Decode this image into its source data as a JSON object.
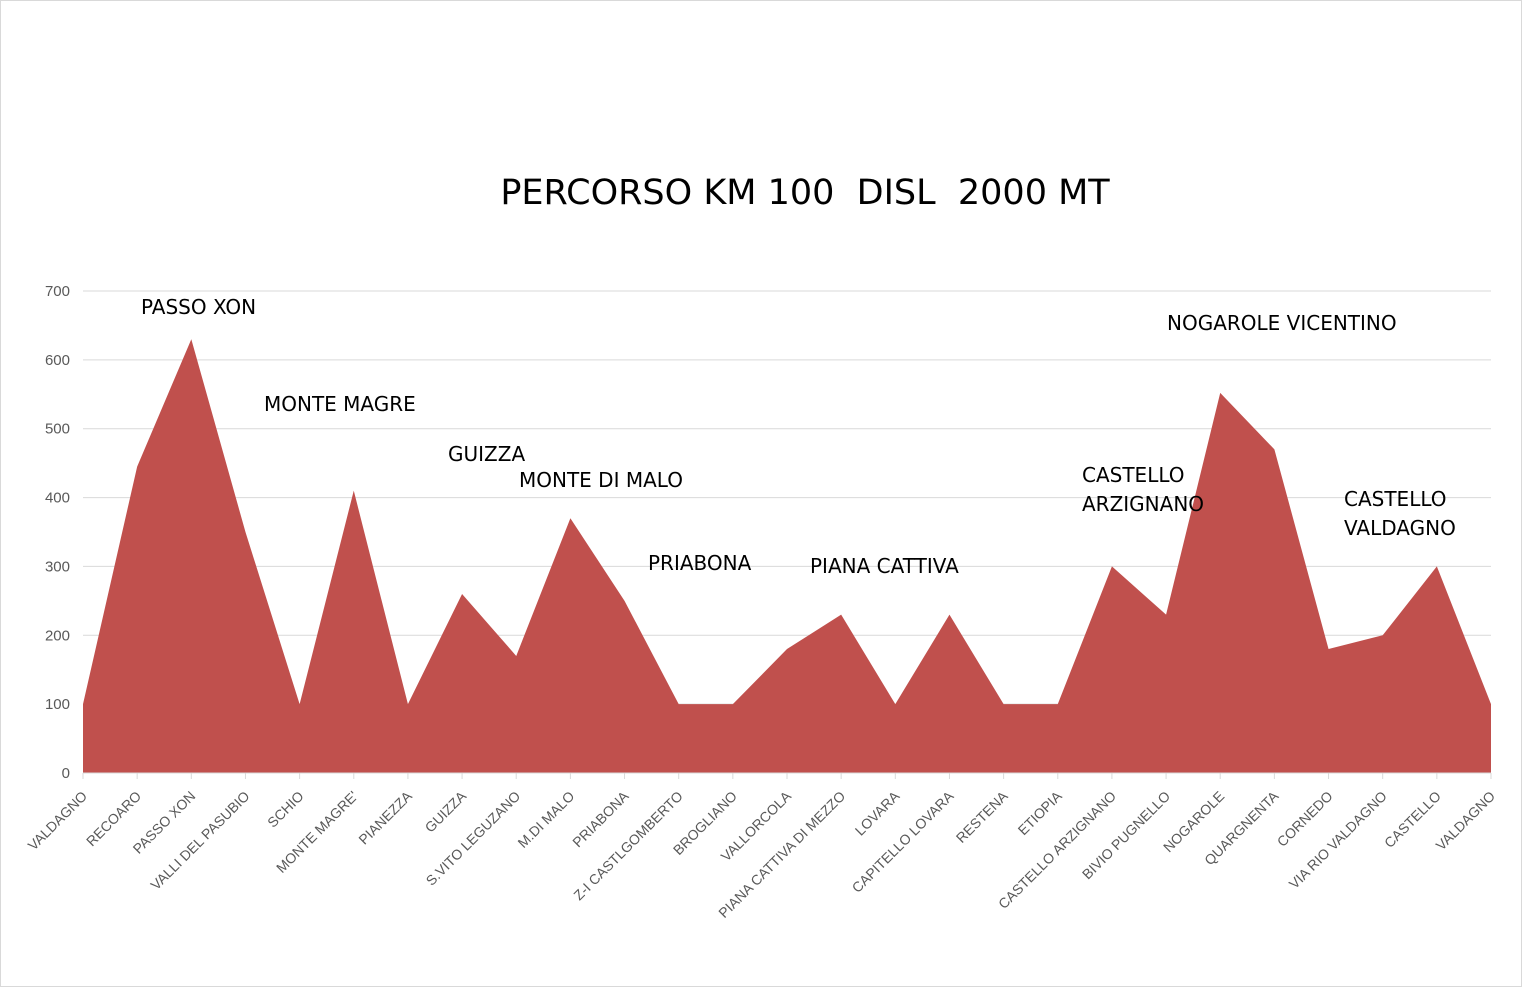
{
  "chart_data": {
    "type": "area",
    "title": "PERCORSO KM 100  DISL  2000 MT",
    "xlabel": "",
    "ylabel": "",
    "ylim": [
      0,
      700
    ],
    "yticks": [
      0,
      100,
      200,
      300,
      400,
      500,
      600,
      700
    ],
    "grid": true,
    "legend": "none",
    "color": "#c0504d",
    "categories": [
      "VALDAGNO",
      "RECOARO",
      "PASSO XON",
      "VALLI DEL PASUBIO",
      "SCHIO",
      "MONTE MAGRE'",
      "PIANEZZA",
      "GUIZZA",
      "S.VITO LEGUZANO",
      "M.DI MALO",
      "PRIABONA",
      "Z-I CASTLGOMBERTO",
      "BROGLIANO",
      "VALLORCOLA",
      "PIANA CATTIVA DI MEZZO",
      "LOVARA",
      "CAPITELLO LOVARA",
      "RESTENA",
      "ETIOPIA",
      "CASTELLO ARZIGNANO",
      "BIVIO PUGNELLO",
      "NOGAROLE",
      "QUARGNENTA",
      "CORNEDO",
      "VIA RIO VALDAGNO",
      "CASTELLO",
      "VALDAGNO"
    ],
    "series": [
      {
        "values": [
          100,
          445,
          630,
          350,
          100,
          410,
          100,
          260,
          170,
          370,
          250,
          100,
          100,
          180,
          230,
          100,
          230,
          100,
          100,
          300,
          230,
          552,
          470,
          180,
          200,
          300,
          100
        ]
      }
    ],
    "annotations": [
      {
        "lines": [
          "PASSO XON"
        ]
      },
      {
        "lines": [
          "MONTE MAGRE"
        ]
      },
      {
        "lines": [
          "GUIZZA"
        ]
      },
      {
        "lines": [
          "MONTE DI MALO"
        ]
      },
      {
        "lines": [
          "PRIABONA"
        ]
      },
      {
        "lines": [
          "PIANA CATTIVA"
        ]
      },
      {
        "lines": [
          "CASTELLO",
          "ARZIGNANO"
        ]
      },
      {
        "lines": [
          "NOGAROLE VICENTINO"
        ]
      },
      {
        "lines": [
          "CASTELLO",
          "VALDAGNO"
        ]
      }
    ]
  }
}
